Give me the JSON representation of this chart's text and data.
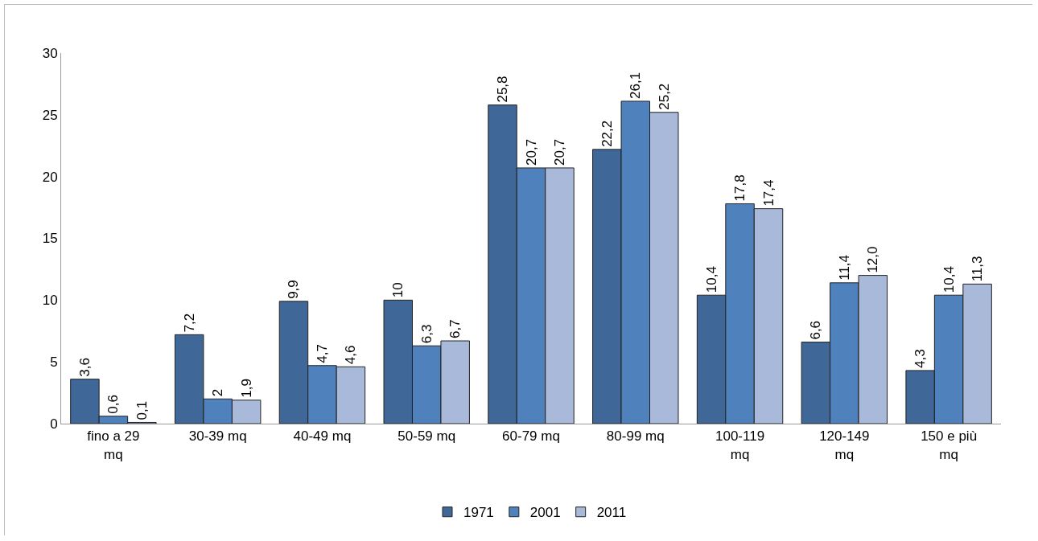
{
  "chart_data": {
    "type": "bar",
    "categories": [
      "fino a 29 mq",
      "30-39 mq",
      "40-49 mq",
      "50-59 mq",
      "60-79 mq",
      "80-99 mq",
      "100-119 mq",
      "120-149 mq",
      "150 e più mq"
    ],
    "series": [
      {
        "name": "1971",
        "color": "#3f6797",
        "values": [
          3.6,
          7.2,
          9.9,
          10,
          25.8,
          22.2,
          10.4,
          6.6,
          4.3
        ],
        "value_labels": [
          "3,6",
          "7,2",
          "9,9",
          "10",
          "25,8",
          "22,2",
          "10,4",
          "6,6",
          "4,3"
        ]
      },
      {
        "name": "2001",
        "color": "#4f81bd",
        "values": [
          0.6,
          2,
          4.7,
          6.3,
          20.7,
          26.1,
          17.8,
          11.4,
          10.4
        ],
        "value_labels": [
          "0,6",
          "2",
          "4,7",
          "6,3",
          "20,7",
          "26,1",
          "17,8",
          "11,4",
          "10,4"
        ]
      },
      {
        "name": "2011",
        "color": "#a9b9d9",
        "values": [
          0.1,
          1.9,
          4.6,
          6.7,
          20.7,
          25.2,
          17.4,
          12.0,
          11.3
        ],
        "value_labels": [
          "0,1",
          "1,9",
          "4,6",
          "6,7",
          "20,7",
          "25,2",
          "17,4",
          "12,0",
          "11,3"
        ]
      }
    ],
    "ylim": [
      0,
      30
    ],
    "yticks": [
      0,
      5,
      10,
      15,
      20,
      25,
      30
    ],
    "grid": false,
    "legend": "bottom"
  }
}
